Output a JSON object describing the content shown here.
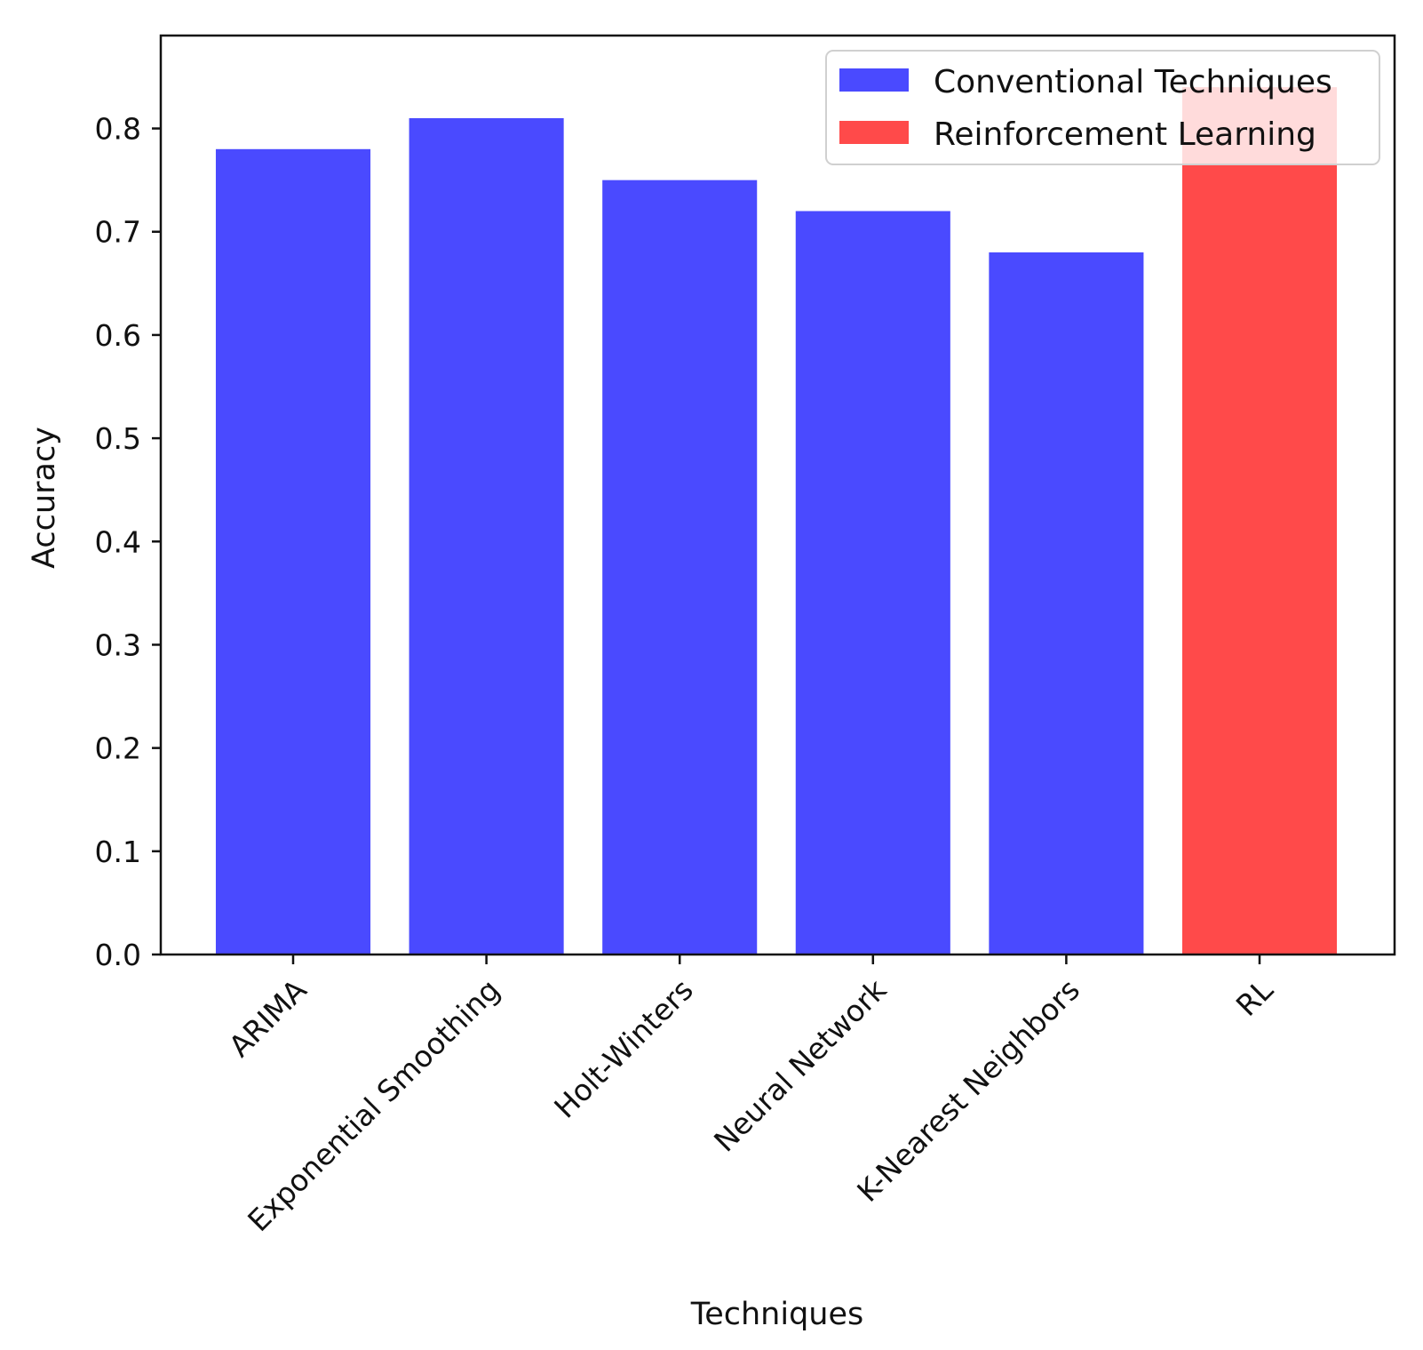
{
  "chart_data": {
    "type": "bar",
    "title": "",
    "xlabel": "Techniques",
    "ylabel": "Accuracy",
    "ylim": [
      0,
      0.89
    ],
    "yticks": [
      0.0,
      0.1,
      0.2,
      0.3,
      0.4,
      0.5,
      0.6,
      0.7,
      0.8
    ],
    "ytick_labels": [
      "0.0",
      "0.1",
      "0.2",
      "0.3",
      "0.4",
      "0.5",
      "0.6",
      "0.7",
      "0.8"
    ],
    "categories": [
      "ARIMA",
      "Exponential Smoothing",
      "Holt-Winters",
      "Neural Network",
      "K-Nearest Neighbors",
      "RL"
    ],
    "values": [
      0.78,
      0.81,
      0.75,
      0.72,
      0.68,
      0.84
    ],
    "bar_groups": [
      "Conventional Techniques",
      "Conventional Techniques",
      "Conventional Techniques",
      "Conventional Techniques",
      "Conventional Techniques",
      "Reinforcement Learning"
    ],
    "legend": {
      "placement": "top-right",
      "entries": [
        {
          "label": "Conventional Techniques",
          "color": "#4a4aff"
        },
        {
          "label": "Reinforcement Learning",
          "color": "#ff4a4a"
        }
      ]
    },
    "grid": false
  }
}
